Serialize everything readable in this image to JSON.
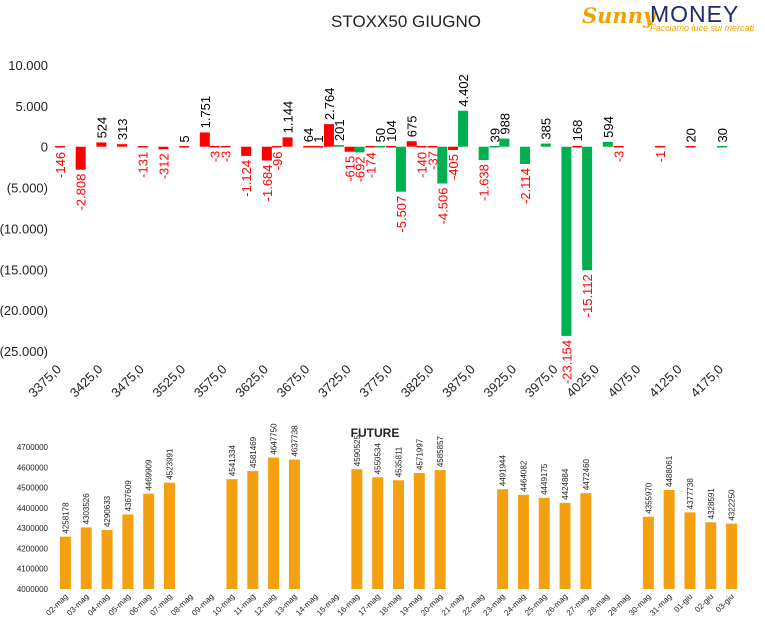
{
  "brand": {
    "name_part1": "Sunny",
    "name_part2": "MONEY",
    "tagline": "Facciamo luce sui mercati"
  },
  "colors": {
    "negative": "#ff0000",
    "positive_label": "#000000",
    "green_bar": "#00b050",
    "red_bar": "#ff0000",
    "future_bar": "#f5a011"
  },
  "chart_data": [
    {
      "type": "bar",
      "title": "STOXX50 GIUGNO",
      "x": [
        3375,
        3400,
        3425,
        3450,
        3475,
        3500,
        3525,
        3550,
        3575,
        3600,
        3625,
        3650,
        3675,
        3700,
        3725,
        3750,
        3775,
        3800,
        3825,
        3850,
        3875,
        3900,
        3925,
        3950,
        3975,
        4000,
        4025,
        4050,
        4075,
        4100,
        4125,
        4150,
        4175
      ],
      "x_tick_labels": [
        "3375,0",
        "3425,0",
        "3475,0",
        "3525,0",
        "3575,0",
        "3625,0",
        "3675,0",
        "3725,0",
        "3775,0",
        "3825,0",
        "3875,0",
        "3925,0",
        "3975,0",
        "4025,0",
        "4075,0",
        "4125,0",
        "4175,0"
      ],
      "y_tick_labels": [
        "10.000",
        "5.000",
        "0",
        "(5.000)",
        "(10.000)",
        "(15.000)",
        "(20.000)",
        "(25.000)"
      ],
      "ylim": [
        -25000,
        10000
      ],
      "bars": [
        {
          "x": 3375,
          "value": -146,
          "label": "-146",
          "color": "red"
        },
        {
          "x": 3400,
          "value": -2808,
          "label": "-2.808",
          "color": "red"
        },
        {
          "x": 3425,
          "value": 524,
          "label": "524",
          "color": "red"
        },
        {
          "x": 3450,
          "value": 313,
          "label": "313",
          "color": "red"
        },
        {
          "x": 3475,
          "value": -131,
          "label": "-131",
          "color": "red"
        },
        {
          "x": 3500,
          "value": -312,
          "label": "-312",
          "color": "red"
        },
        {
          "x": 3525,
          "value": 5,
          "label": "5",
          "color": "red"
        },
        {
          "x": 3550,
          "value": 1751,
          "label": "1.751",
          "color": "red"
        },
        {
          "x": 3562,
          "value": -3,
          "label": "-3",
          "color": "red"
        },
        {
          "x": 3575,
          "value": -3,
          "label": "-3",
          "color": "red"
        },
        {
          "x": 3600,
          "value": -1124,
          "label": "-1.124",
          "color": "red"
        },
        {
          "x": 3625,
          "value": -1684,
          "label": "-1.684",
          "color": "red"
        },
        {
          "x": 3637,
          "value": -96,
          "label": "-96",
          "color": "red"
        },
        {
          "x": 3650,
          "value": 1144,
          "label": "1.144",
          "color": "red"
        },
        {
          "x": 3675,
          "value": 64,
          "label": "64",
          "color": "red"
        },
        {
          "x": 3687,
          "value": 1,
          "label": "1",
          "color": "red"
        },
        {
          "x": 3700,
          "value": 2764,
          "label": "2.764",
          "color": "red"
        },
        {
          "x": 3712,
          "value": 201,
          "label": "201",
          "color": "green"
        },
        {
          "x": 3725,
          "value": -615,
          "label": "-615",
          "color": "red"
        },
        {
          "x": 3737,
          "value": -692,
          "label": "-692",
          "color": "green"
        },
        {
          "x": 3750,
          "value": -174,
          "label": "-174",
          "color": "red"
        },
        {
          "x": 3762,
          "value": 50,
          "label": "50",
          "color": "green"
        },
        {
          "x": 3775,
          "value": 104,
          "label": "104",
          "color": "red"
        },
        {
          "x": 3787,
          "value": -5507,
          "label": "-5.507",
          "color": "green"
        },
        {
          "x": 3800,
          "value": 675,
          "label": "675",
          "color": "red"
        },
        {
          "x": 3812,
          "value": -140,
          "label": "-140",
          "color": "red"
        },
        {
          "x": 3825,
          "value": -37,
          "label": "-37",
          "color": "red"
        },
        {
          "x": 3837,
          "value": -4506,
          "label": "-4.506",
          "color": "green"
        },
        {
          "x": 3850,
          "value": -405,
          "label": "-405",
          "color": "red"
        },
        {
          "x": 3862,
          "value": 4402,
          "label": "4.402",
          "color": "green"
        },
        {
          "x": 3887,
          "value": -1638,
          "label": "-1.638",
          "color": "green"
        },
        {
          "x": 3900,
          "value": 39,
          "label": "39",
          "color": "green"
        },
        {
          "x": 3912,
          "value": 988,
          "label": "988",
          "color": "green"
        },
        {
          "x": 3937,
          "value": -2114,
          "label": "-2.114",
          "color": "green"
        },
        {
          "x": 3962,
          "value": 385,
          "label": "385",
          "color": "green"
        },
        {
          "x": 3987,
          "value": -23154,
          "label": "-23.154",
          "color": "green"
        },
        {
          "x": 4000,
          "value": 168,
          "label": "168",
          "color": "red"
        },
        {
          "x": 4012,
          "value": -15112,
          "label": "-15.112",
          "color": "green"
        },
        {
          "x": 4037,
          "value": 594,
          "label": "594",
          "color": "green"
        },
        {
          "x": 4050,
          "value": -3,
          "label": "-3",
          "color": "red"
        },
        {
          "x": 4100,
          "value": -1,
          "label": "-1",
          "color": "red"
        },
        {
          "x": 4137,
          "value": 20,
          "label": "20",
          "color": "red"
        },
        {
          "x": 4175,
          "value": 30,
          "label": "30",
          "color": "green"
        }
      ]
    },
    {
      "type": "bar",
      "title": "FUTURE",
      "ylim": [
        4000000,
        4700000
      ],
      "y_tick_labels": [
        "4700000",
        "4600000",
        "4500000",
        "4400000",
        "4300000",
        "4200000",
        "4100000",
        "4000000"
      ],
      "categories": [
        "02-mag",
        "03-mag",
        "04-mag",
        "05-mag",
        "06-mag",
        "07-mag",
        "08-mag",
        "09-mag",
        "10-mag",
        "11-mag",
        "12-mag",
        "13-mag",
        "14-mag",
        "15-mag",
        "16-mag",
        "17-mag",
        "18-mag",
        "19-mag",
        "20-mag",
        "21-mag",
        "22-mag",
        "23-mag",
        "24-mag",
        "25-mag",
        "26-mag",
        "27-mag",
        "28-mag",
        "29-mag",
        "30-mag",
        "31-mag",
        "01-giu",
        "02-giu",
        "03-giu"
      ],
      "values": [
        4258178,
        4303526,
        4290633,
        4367609,
        4469909,
        4523991,
        null,
        null,
        4541334,
        4581469,
        4647750,
        4637738,
        null,
        null,
        4590525,
        4550534,
        4535811,
        4571997,
        4585857,
        null,
        null,
        4491944,
        4464082,
        4449175,
        4424884,
        4472460,
        null,
        null,
        4355970,
        4488061,
        4377738,
        4328591,
        4322250
      ],
      "value_labels": [
        "4258178",
        "4303526",
        "4290633",
        "4367609",
        "4469909",
        "4523991",
        "",
        "",
        "4541334",
        "4581469",
        "4647750",
        "4637738",
        "",
        "",
        "4590525",
        "4550534",
        "4535811",
        "4571997",
        "4585857",
        "",
        "",
        "4491944",
        "4464082",
        "4449175",
        "4424884",
        "4472460",
        "",
        "",
        "4355970",
        "4488061",
        "4377738",
        "4328591",
        "4322250"
      ]
    }
  ]
}
